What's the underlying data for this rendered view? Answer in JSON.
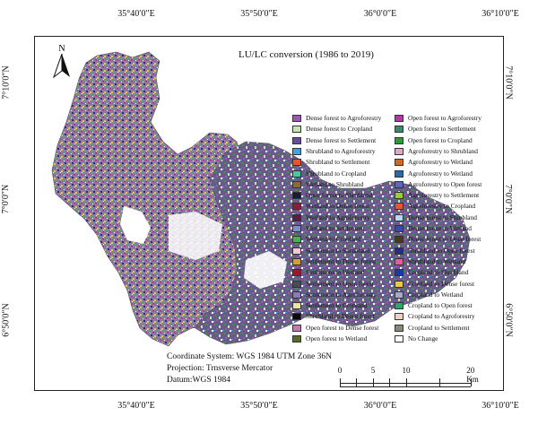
{
  "map_title": "LU/LC conversion (1986 to 2019)",
  "north_label": "N",
  "coordinates": {
    "top": [
      "35°40′0″E",
      "35°50′0″E",
      "36°0′0″E",
      "36°10′0″E"
    ],
    "bottom": [
      "35°40′0″E",
      "35°50′0″E",
      "36°0′0″E",
      "36°10′0″E"
    ],
    "left": [
      "7°10′0″N",
      "7°0′0″N",
      "6°50′0″N"
    ],
    "right": [
      "7°10′0″N",
      "7°0′0″N",
      "6°50′0″N"
    ]
  },
  "legend": {
    "col1": [
      {
        "label": "Dense forest to Agroforestry",
        "color": "#9b59b6"
      },
      {
        "label": "Dense forest to Cropland",
        "color": "#c6e3b3"
      },
      {
        "label": "Dense forest to Settlement",
        "color": "#6a4c9c"
      },
      {
        "label": "Shrubland to Agroforestry",
        "color": "#3fa7d6"
      },
      {
        "label": "Shrubland to Settlement",
        "color": "#e0592a"
      },
      {
        "label": "Shrubland to Cropland",
        "color": "#47c8a0"
      },
      {
        "label": "Wetland to Shrubland",
        "color": "#8b6a3e"
      },
      {
        "label": "Open forest to Shrubland",
        "color": "#1a1a3a"
      },
      {
        "label": "Wetland to Dense forest",
        "color": "#8e1b3a"
      },
      {
        "label": "Wetland to Agroforestry",
        "color": "#5a1a4a"
      },
      {
        "label": "Wetland to Settlement",
        "color": "#7f8fc0"
      },
      {
        "label": "Wetland to Cropland",
        "color": "#4caf50"
      },
      {
        "label": "Settlement to Shrubland",
        "color": "#f4c6d8"
      },
      {
        "label": "Settlement to Dense forest",
        "color": "#d4a22b"
      },
      {
        "label": "Settlement to Wetland",
        "color": "#a0152a"
      },
      {
        "label": "Settlement to Open forest",
        "color": "#4a4a5a"
      },
      {
        "label": "Settlement to Agroforestry",
        "color": "#8a7bb8"
      },
      {
        "label": "Settlement to Cropland",
        "color": "#e6e6a0"
      },
      {
        "label": "Shrubland to Dense forest",
        "color": "#0a0a0a"
      },
      {
        "label": "Open forest to Dense forest",
        "color": "#c27bb0"
      },
      {
        "label": "Open forest to Wetland",
        "color": "#5a6a2a"
      }
    ],
    "col2": [
      {
        "label": "Open forest to Agroforestry",
        "color": "#b03aa8"
      },
      {
        "label": "Open forest to Settlement",
        "color": "#3a8a6a"
      },
      {
        "label": "Open forest to Cropland",
        "color": "#2e9a3a"
      },
      {
        "label": "Agroforestry to Shrubland",
        "color": "#e0a8c8"
      },
      {
        "label": "Agroforestry to Wetland",
        "color": "#d2691e"
      },
      {
        "label": "Agroforestry to Wetland",
        "color": "#2a6aa8"
      },
      {
        "label": "Agroforestry to Open forest",
        "color": "#5a6ab8"
      },
      {
        "label": "Agroforestry to Settlement",
        "color": "#9acd32"
      },
      {
        "label": "Agroforestry to Cropland",
        "color": "#e8553a"
      },
      {
        "label": "Dense forest to Shrubland",
        "color": "#b8d8f0"
      },
      {
        "label": "Dense forest to Wetland",
        "color": "#3a4aa8"
      },
      {
        "label": "Dense forest to Open forest",
        "color": "#4a3a1a"
      },
      {
        "label": "Shrubland to Open forest",
        "color": "#2a2a8a"
      },
      {
        "label": "Shrubland to Wetland",
        "color": "#e85a9a"
      },
      {
        "label": "Cropland to Shrubland",
        "color": "#1a3aa8"
      },
      {
        "label": "Cropland to Dense forest",
        "color": "#e8c84a"
      },
      {
        "label": "Cropland to Wetland",
        "color": "#a8a8c8"
      },
      {
        "label": "Cropland to Open forest",
        "color": "#2aa86a"
      },
      {
        "label": "Cropland to Agroforestry",
        "color": "#f0d0c0"
      },
      {
        "label": "Cropland to Settlement",
        "color": "#8a8a7a"
      },
      {
        "label": "No Change",
        "color": "#ffffff"
      }
    ]
  },
  "metadata": {
    "coordinate_system": "Coordinate System: WGS 1984 UTM Zone 36N",
    "projection": "Projection: Trnsverse Mercator",
    "datum": "Datum:WGS 1984"
  },
  "scale": {
    "ticks": [
      "0",
      "5",
      "10",
      "20 Km"
    ]
  }
}
